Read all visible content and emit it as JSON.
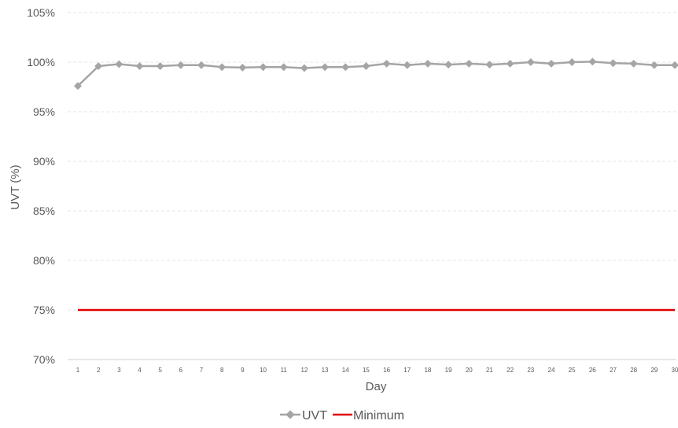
{
  "chart_data": {
    "type": "line",
    "title": "",
    "xlabel": "Day",
    "ylabel": "UVT (%)",
    "ylim": [
      70,
      105
    ],
    "yticks": [
      "70%",
      "75%",
      "80%",
      "85%",
      "90%",
      "95%",
      "100%",
      "105%"
    ],
    "ytick_values": [
      70,
      75,
      80,
      85,
      90,
      95,
      100,
      105
    ],
    "grid": true,
    "legend_position": "bottom",
    "categories": [
      "1",
      "2",
      "3",
      "4",
      "5",
      "6",
      "7",
      "8",
      "9",
      "10",
      "11",
      "12",
      "13",
      "14",
      "15",
      "16",
      "17",
      "18",
      "19",
      "20",
      "21",
      "22",
      "23",
      "24",
      "25",
      "26",
      "27",
      "28",
      "29",
      "30"
    ],
    "series": [
      {
        "name": "UVT",
        "color": "#a5a5a5",
        "marker": "diamond",
        "values": [
          97.6,
          99.6,
          99.8,
          99.6,
          99.6,
          99.7,
          99.7,
          99.5,
          99.45,
          99.5,
          99.5,
          99.4,
          99.5,
          99.5,
          99.6,
          99.85,
          99.7,
          99.85,
          99.75,
          99.85,
          99.75,
          99.85,
          100.0,
          99.85,
          100.0,
          100.05,
          99.9,
          99.85,
          99.7,
          99.7
        ]
      },
      {
        "name": "Minimum",
        "color": "#e00000",
        "marker": "none",
        "values": [
          75,
          75,
          75,
          75,
          75,
          75,
          75,
          75,
          75,
          75,
          75,
          75,
          75,
          75,
          75,
          75,
          75,
          75,
          75,
          75,
          75,
          75,
          75,
          75,
          75,
          75,
          75,
          75,
          75,
          75
        ]
      }
    ]
  }
}
